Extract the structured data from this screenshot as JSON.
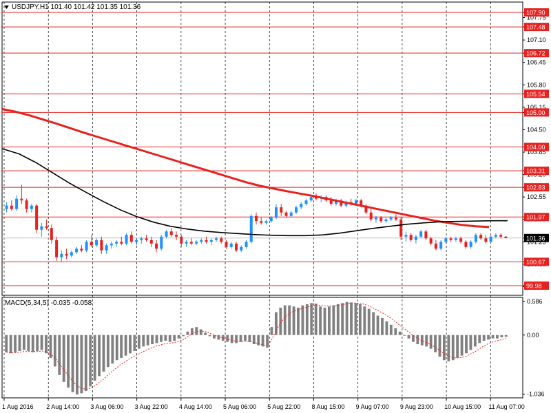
{
  "chart_data": {
    "type": "candlestick",
    "symbol_info": "USDJPY,H1  101.40 101.42 101.35 101.36",
    "price_axis": {
      "range": [
        99.7,
        108.2
      ],
      "ticks": [
        "107.90",
        "107.75",
        "107.48",
        "107.10",
        "106.72",
        "106.45",
        "105.80",
        "105.54",
        "105.15",
        "105.00",
        "104.50",
        "104.00",
        "103.85",
        "103.31",
        "103.20",
        "102.83",
        "102.55",
        "101.97",
        "101.90",
        "101.36",
        "101.25",
        "100.67",
        "100.60",
        "99.98",
        "99.95"
      ],
      "ticks_num": [
        107.9,
        107.75,
        107.48,
        107.1,
        106.72,
        106.45,
        105.8,
        105.54,
        105.15,
        105.0,
        104.5,
        104.0,
        103.85,
        103.31,
        103.2,
        102.83,
        102.55,
        101.97,
        101.9,
        101.36,
        101.25,
        100.67,
        100.6,
        99.98,
        99.95
      ]
    },
    "levels": [
      {
        "label": "107.90",
        "value": 107.9
      },
      {
        "label": "107.48",
        "value": 107.48
      },
      {
        "label": "106.72",
        "value": 106.72
      },
      {
        "label": "105.54",
        "value": 105.54
      },
      {
        "label": "105.00",
        "value": 105.0
      },
      {
        "label": "104.00",
        "value": 104.0
      },
      {
        "label": "103.31",
        "value": 103.31
      },
      {
        "label": "102.83",
        "value": 102.83
      },
      {
        "label": "101.97",
        "value": 101.97
      },
      {
        "label": "100.67",
        "value": 100.67
      },
      {
        "label": "99.98",
        "value": 99.98
      }
    ],
    "current_price": {
      "label": "101.36",
      "value": 101.36
    },
    "time_axis": [
      "1 Aug 2016",
      "2 Aug 14:00",
      "3 Aug 06:00",
      "3 Aug 22:00",
      "4 Aug 14:00",
      "5 Aug 06:00",
      "5 Aug 22:00",
      "8 Aug 15:00",
      "9 Aug 07:00",
      "9 Aug 23:00",
      "10 Aug 15:00",
      "11 Aug 07:00"
    ],
    "candles": [
      {
        "o": 102.2,
        "h": 102.4,
        "l": 102.1,
        "c": 102.3
      },
      {
        "o": 102.3,
        "h": 102.45,
        "l": 102.15,
        "c": 102.2
      },
      {
        "o": 102.2,
        "h": 102.6,
        "l": 102.15,
        "c": 102.5
      },
      {
        "o": 102.5,
        "h": 102.9,
        "l": 102.35,
        "c": 102.45
      },
      {
        "o": 102.45,
        "h": 102.5,
        "l": 102.1,
        "c": 102.2
      },
      {
        "o": 102.2,
        "h": 102.35,
        "l": 102.1,
        "c": 102.3
      },
      {
        "o": 102.3,
        "h": 102.35,
        "l": 101.5,
        "c": 101.6
      },
      {
        "o": 101.6,
        "h": 101.8,
        "l": 101.4,
        "c": 101.7
      },
      {
        "o": 101.7,
        "h": 101.9,
        "l": 101.6,
        "c": 101.65
      },
      {
        "o": 101.65,
        "h": 101.75,
        "l": 101.2,
        "c": 101.3
      },
      {
        "o": 101.3,
        "h": 101.4,
        "l": 100.7,
        "c": 100.8
      },
      {
        "o": 100.8,
        "h": 101.0,
        "l": 100.67,
        "c": 100.9
      },
      {
        "o": 100.9,
        "h": 101.05,
        "l": 100.75,
        "c": 100.85
      },
      {
        "o": 100.85,
        "h": 101.0,
        "l": 100.8,
        "c": 100.95
      },
      {
        "o": 100.95,
        "h": 101.1,
        "l": 100.9,
        "c": 101.05
      },
      {
        "o": 101.05,
        "h": 101.15,
        "l": 100.95,
        "c": 101.0
      },
      {
        "o": 101.0,
        "h": 101.3,
        "l": 100.95,
        "c": 101.25
      },
      {
        "o": 101.25,
        "h": 101.45,
        "l": 101.1,
        "c": 101.15
      },
      {
        "o": 101.15,
        "h": 101.35,
        "l": 101.1,
        "c": 101.3
      },
      {
        "o": 101.3,
        "h": 101.4,
        "l": 100.9,
        "c": 101.0
      },
      {
        "o": 101.0,
        "h": 101.2,
        "l": 100.9,
        "c": 101.15
      },
      {
        "o": 101.15,
        "h": 101.25,
        "l": 101.05,
        "c": 101.2
      },
      {
        "o": 101.2,
        "h": 101.3,
        "l": 101.1,
        "c": 101.25
      },
      {
        "o": 101.25,
        "h": 101.4,
        "l": 101.15,
        "c": 101.2
      },
      {
        "o": 101.2,
        "h": 101.5,
        "l": 101.15,
        "c": 101.45
      },
      {
        "o": 101.45,
        "h": 101.55,
        "l": 101.2,
        "c": 101.25
      },
      {
        "o": 101.25,
        "h": 101.35,
        "l": 101.15,
        "c": 101.3
      },
      {
        "o": 101.3,
        "h": 101.4,
        "l": 101.2,
        "c": 101.35
      },
      {
        "o": 101.35,
        "h": 101.45,
        "l": 101.25,
        "c": 101.3
      },
      {
        "o": 101.3,
        "h": 101.4,
        "l": 101.1,
        "c": 101.2
      },
      {
        "o": 101.2,
        "h": 101.3,
        "l": 100.95,
        "c": 101.05
      },
      {
        "o": 101.05,
        "h": 101.45,
        "l": 101.0,
        "c": 101.4
      },
      {
        "o": 101.4,
        "h": 101.6,
        "l": 101.35,
        "c": 101.55
      },
      {
        "o": 101.55,
        "h": 101.65,
        "l": 101.4,
        "c": 101.45
      },
      {
        "o": 101.45,
        "h": 101.55,
        "l": 101.3,
        "c": 101.4
      },
      {
        "o": 101.4,
        "h": 101.45,
        "l": 101.1,
        "c": 101.2
      },
      {
        "o": 101.2,
        "h": 101.3,
        "l": 101.1,
        "c": 101.25
      },
      {
        "o": 101.25,
        "h": 101.35,
        "l": 101.15,
        "c": 101.2
      },
      {
        "o": 101.2,
        "h": 101.3,
        "l": 101.15,
        "c": 101.25
      },
      {
        "o": 101.25,
        "h": 101.35,
        "l": 101.2,
        "c": 101.3
      },
      {
        "o": 101.3,
        "h": 101.4,
        "l": 101.2,
        "c": 101.25
      },
      {
        "o": 101.25,
        "h": 101.35,
        "l": 101.15,
        "c": 101.3
      },
      {
        "o": 101.3,
        "h": 101.4,
        "l": 101.25,
        "c": 101.35
      },
      {
        "o": 101.35,
        "h": 101.4,
        "l": 101.2,
        "c": 101.25
      },
      {
        "o": 101.25,
        "h": 101.3,
        "l": 101.05,
        "c": 101.1
      },
      {
        "o": 101.1,
        "h": 101.25,
        "l": 101.05,
        "c": 101.2
      },
      {
        "o": 101.2,
        "h": 101.25,
        "l": 100.95,
        "c": 101.0
      },
      {
        "o": 101.0,
        "h": 101.15,
        "l": 100.95,
        "c": 101.1
      },
      {
        "o": 101.1,
        "h": 101.3,
        "l": 101.05,
        "c": 101.25
      },
      {
        "o": 101.25,
        "h": 102.05,
        "l": 101.2,
        "c": 102.0
      },
      {
        "o": 102.0,
        "h": 102.1,
        "l": 101.75,
        "c": 101.85
      },
      {
        "o": 101.85,
        "h": 101.95,
        "l": 101.75,
        "c": 101.8
      },
      {
        "o": 101.8,
        "h": 101.9,
        "l": 101.75,
        "c": 101.85
      },
      {
        "o": 101.85,
        "h": 102.0,
        "l": 101.8,
        "c": 101.95
      },
      {
        "o": 101.95,
        "h": 102.35,
        "l": 101.9,
        "c": 102.25
      },
      {
        "o": 102.25,
        "h": 102.35,
        "l": 102.0,
        "c": 102.1
      },
      {
        "o": 102.1,
        "h": 102.15,
        "l": 101.95,
        "c": 102.0
      },
      {
        "o": 102.0,
        "h": 102.15,
        "l": 101.95,
        "c": 102.1
      },
      {
        "o": 102.1,
        "h": 102.3,
        "l": 102.05,
        "c": 102.25
      },
      {
        "o": 102.25,
        "h": 102.4,
        "l": 102.2,
        "c": 102.35
      },
      {
        "o": 102.35,
        "h": 102.5,
        "l": 102.3,
        "c": 102.45
      },
      {
        "o": 102.45,
        "h": 102.6,
        "l": 102.4,
        "c": 102.55
      },
      {
        "o": 102.55,
        "h": 102.65,
        "l": 102.45,
        "c": 102.5
      },
      {
        "o": 102.5,
        "h": 102.6,
        "l": 102.4,
        "c": 102.55
      },
      {
        "o": 102.55,
        "h": 102.6,
        "l": 102.4,
        "c": 102.45
      },
      {
        "o": 102.45,
        "h": 102.55,
        "l": 102.3,
        "c": 102.35
      },
      {
        "o": 102.35,
        "h": 102.5,
        "l": 102.3,
        "c": 102.45
      },
      {
        "o": 102.45,
        "h": 102.5,
        "l": 102.25,
        "c": 102.3
      },
      {
        "o": 102.3,
        "h": 102.45,
        "l": 102.25,
        "c": 102.4
      },
      {
        "o": 102.4,
        "h": 102.5,
        "l": 102.3,
        "c": 102.35
      },
      {
        "o": 102.35,
        "h": 102.5,
        "l": 102.3,
        "c": 102.45
      },
      {
        "o": 102.45,
        "h": 102.5,
        "l": 102.25,
        "c": 102.3
      },
      {
        "o": 102.3,
        "h": 102.35,
        "l": 102.05,
        "c": 102.1
      },
      {
        "o": 102.1,
        "h": 102.2,
        "l": 101.85,
        "c": 101.9
      },
      {
        "o": 101.9,
        "h": 102.0,
        "l": 101.8,
        "c": 101.95
      },
      {
        "o": 101.95,
        "h": 102.0,
        "l": 101.8,
        "c": 101.85
      },
      {
        "o": 101.85,
        "h": 101.95,
        "l": 101.8,
        "c": 101.9
      },
      {
        "o": 101.9,
        "h": 102.0,
        "l": 101.85,
        "c": 101.95
      },
      {
        "o": 101.95,
        "h": 102.05,
        "l": 101.85,
        "c": 101.9
      },
      {
        "o": 101.9,
        "h": 101.95,
        "l": 101.3,
        "c": 101.4
      },
      {
        "o": 101.4,
        "h": 101.55,
        "l": 101.25,
        "c": 101.45
      },
      {
        "o": 101.45,
        "h": 101.5,
        "l": 101.25,
        "c": 101.3
      },
      {
        "o": 101.3,
        "h": 101.45,
        "l": 101.2,
        "c": 101.4
      },
      {
        "o": 101.4,
        "h": 101.6,
        "l": 101.35,
        "c": 101.55
      },
      {
        "o": 101.55,
        "h": 101.6,
        "l": 101.3,
        "c": 101.35
      },
      {
        "o": 101.35,
        "h": 101.4,
        "l": 101.15,
        "c": 101.2
      },
      {
        "o": 101.2,
        "h": 101.3,
        "l": 101.0,
        "c": 101.05
      },
      {
        "o": 101.05,
        "h": 101.3,
        "l": 101.0,
        "c": 101.25
      },
      {
        "o": 101.25,
        "h": 101.4,
        "l": 101.2,
        "c": 101.35
      },
      {
        "o": 101.35,
        "h": 101.4,
        "l": 101.25,
        "c": 101.3
      },
      {
        "o": 101.3,
        "h": 101.4,
        "l": 101.25,
        "c": 101.35
      },
      {
        "o": 101.35,
        "h": 101.4,
        "l": 101.2,
        "c": 101.25
      },
      {
        "o": 101.25,
        "h": 101.3,
        "l": 101.05,
        "c": 101.1
      },
      {
        "o": 101.1,
        "h": 101.3,
        "l": 101.05,
        "c": 101.25
      },
      {
        "o": 101.25,
        "h": 101.5,
        "l": 101.2,
        "c": 101.45
      },
      {
        "o": 101.45,
        "h": 101.5,
        "l": 101.3,
        "c": 101.35
      },
      {
        "o": 101.35,
        "h": 101.45,
        "l": 101.2,
        "c": 101.25
      },
      {
        "o": 101.25,
        "h": 101.45,
        "l": 101.2,
        "c": 101.4
      },
      {
        "o": 101.4,
        "h": 101.5,
        "l": 101.35,
        "c": 101.45
      },
      {
        "o": 101.45,
        "h": 101.5,
        "l": 101.35,
        "c": 101.4
      },
      {
        "o": 101.4,
        "h": 101.42,
        "l": 101.35,
        "c": 101.36
      }
    ],
    "ma_slow": {
      "color": "#e8211f",
      "values": [
        105.1,
        105.02,
        104.92,
        104.8,
        104.68,
        104.55,
        104.42,
        104.3,
        104.18,
        104.06,
        103.94,
        103.82,
        103.7,
        103.58,
        103.46,
        103.34,
        103.22,
        103.1,
        102.98,
        102.88,
        102.8,
        102.72,
        102.65,
        102.58,
        102.5,
        102.42,
        102.34,
        102.26,
        102.18,
        102.1,
        102.02,
        101.94,
        101.86,
        101.8,
        101.74,
        101.7,
        101.68
      ]
    },
    "ma_fast": {
      "color": "#000000",
      "values": [
        103.95,
        103.8,
        103.55,
        103.25,
        102.95,
        102.68,
        102.42,
        102.18,
        101.98,
        101.82,
        101.7,
        101.62,
        101.56,
        101.52,
        101.49,
        101.46,
        101.44,
        101.43,
        101.43,
        101.45,
        101.5,
        101.57,
        101.64,
        101.7,
        101.76,
        101.8,
        101.83,
        101.84,
        101.85,
        101.86,
        101.86
      ]
    },
    "macd": {
      "label": "MACD(5,34,5) -0.035 -0.058",
      "ticks": [
        "0.586",
        "0.00",
        "-1.036"
      ],
      "ticks_num": [
        0.586,
        0.0,
        -1.036
      ],
      "range": [
        -1.1,
        0.66
      ],
      "histogram": [
        -0.3,
        -0.32,
        -0.3,
        -0.28,
        -0.26,
        -0.28,
        -0.3,
        -0.28,
        -0.26,
        -0.32,
        -0.4,
        -0.55,
        -0.7,
        -0.82,
        -0.92,
        -1.0,
        -1.04,
        -1.02,
        -0.98,
        -0.9,
        -0.8,
        -0.72,
        -0.64,
        -0.56,
        -0.5,
        -0.44,
        -0.4,
        -0.36,
        -0.32,
        -0.28,
        -0.24,
        -0.2,
        -0.18,
        -0.16,
        -0.14,
        -0.12,
        -0.1,
        -0.12,
        -0.1,
        -0.06,
        -0.02,
        0.06,
        0.12,
        0.14,
        0.1,
        0.04,
        -0.02,
        -0.06,
        -0.08,
        -0.1,
        -0.12,
        -0.14,
        -0.14,
        -0.12,
        -0.1,
        -0.12,
        -0.16,
        -0.18,
        -0.2,
        -0.22,
        0.14,
        0.4,
        0.48,
        0.52,
        0.52,
        0.5,
        0.48,
        0.52,
        0.54,
        0.56,
        0.55,
        0.5,
        0.48,
        0.5,
        0.52,
        0.54,
        0.56,
        0.58,
        0.57,
        0.56,
        0.54,
        0.5,
        0.46,
        0.4,
        0.34,
        0.3,
        0.24,
        0.18,
        0.12,
        0.06,
        0.0,
        -0.06,
        -0.12,
        -0.16,
        -0.18,
        -0.2,
        -0.24,
        -0.3,
        -0.38,
        -0.44,
        -0.46,
        -0.44,
        -0.4,
        -0.36,
        -0.32,
        -0.26,
        -0.2,
        -0.14,
        -0.1,
        -0.08,
        -0.06,
        -0.06,
        -0.04,
        -0.03
      ],
      "signal": [
        -0.3,
        -0.31,
        -0.31,
        -0.3,
        -0.29,
        -0.29,
        -0.29,
        -0.29,
        -0.28,
        -0.29,
        -0.33,
        -0.4,
        -0.5,
        -0.61,
        -0.71,
        -0.81,
        -0.89,
        -0.93,
        -0.95,
        -0.93,
        -0.89,
        -0.83,
        -0.77,
        -0.7,
        -0.63,
        -0.57,
        -0.51,
        -0.46,
        -0.41,
        -0.37,
        -0.33,
        -0.29,
        -0.25,
        -0.22,
        -0.19,
        -0.17,
        -0.15,
        -0.14,
        -0.13,
        -0.11,
        -0.08,
        -0.03,
        0.02,
        0.06,
        0.07,
        0.06,
        0.03,
        0.0,
        -0.03,
        -0.05,
        -0.07,
        -0.09,
        -0.11,
        -0.11,
        -0.11,
        -0.11,
        -0.13,
        -0.15,
        -0.17,
        -0.19,
        -0.08,
        0.08,
        0.21,
        0.31,
        0.38,
        0.42,
        0.44,
        0.47,
        0.49,
        0.51,
        0.53,
        0.52,
        0.51,
        0.51,
        0.51,
        0.52,
        0.53,
        0.55,
        0.56,
        0.56,
        0.55,
        0.54,
        0.51,
        0.47,
        0.43,
        0.39,
        0.34,
        0.29,
        0.23,
        0.17,
        0.11,
        0.05,
        -0.01,
        -0.06,
        -0.1,
        -0.13,
        -0.17,
        -0.21,
        -0.27,
        -0.33,
        -0.37,
        -0.4,
        -0.4,
        -0.39,
        -0.37,
        -0.33,
        -0.29,
        -0.24,
        -0.19,
        -0.15,
        -0.12,
        -0.1,
        -0.08,
        -0.06
      ]
    }
  }
}
